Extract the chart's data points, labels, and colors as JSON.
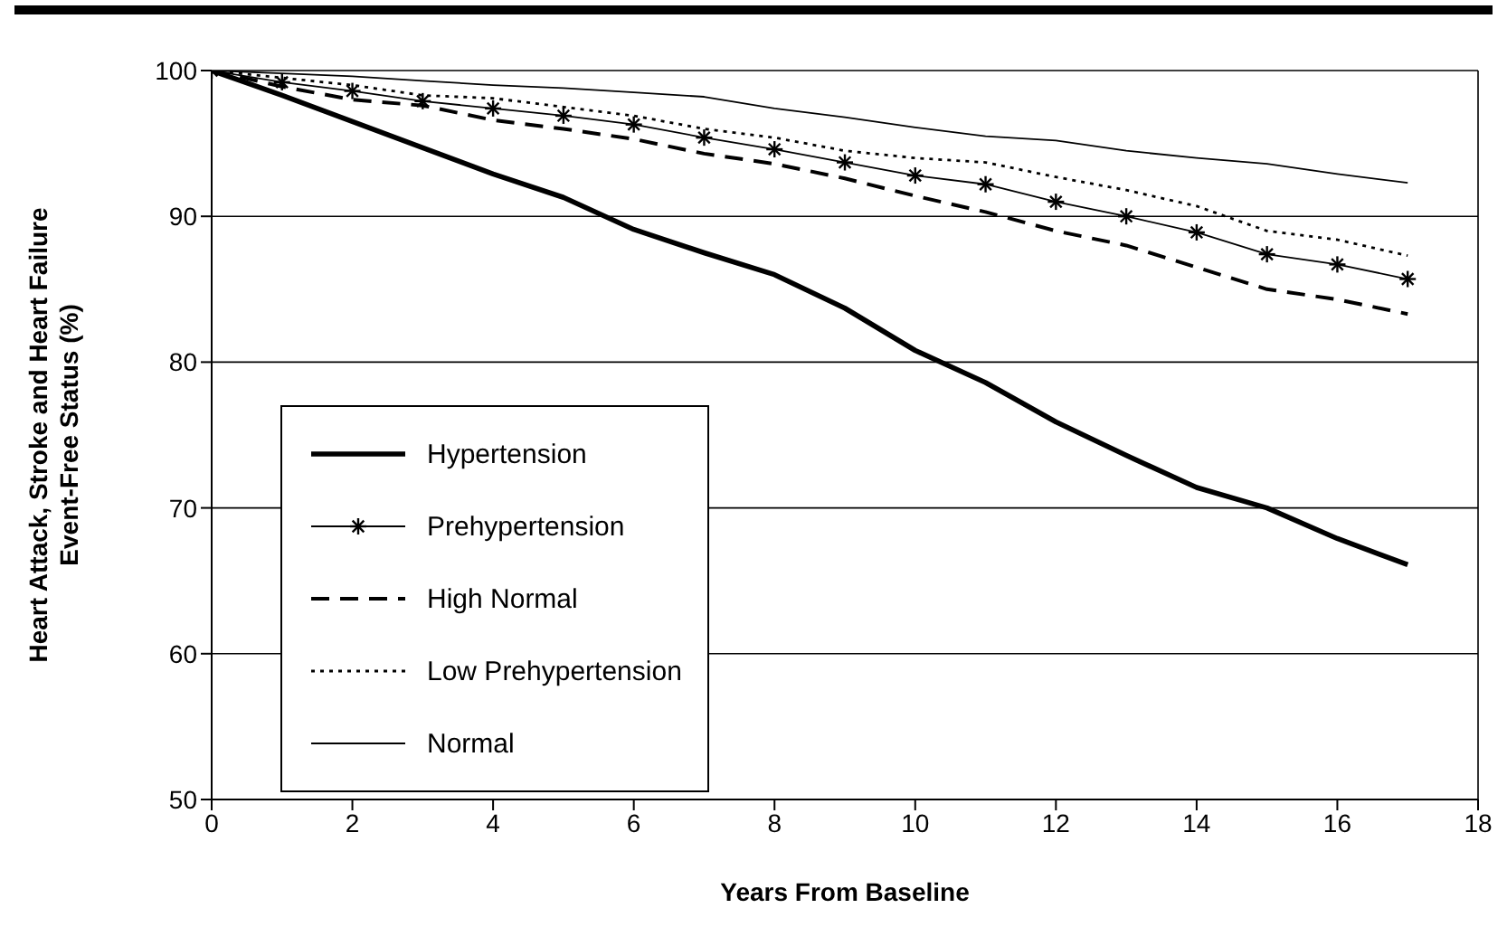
{
  "chart_data": {
    "type": "line",
    "xlabel": "Years From Baseline",
    "ylabel": "Heart Attack, Stroke and Heart Failure\nEvent-Free Status (%)",
    "x": [
      0,
      1,
      2,
      3,
      4,
      5,
      6,
      7,
      8,
      9,
      10,
      11,
      12,
      13,
      14,
      15,
      16,
      17
    ],
    "series": [
      {
        "name": "Hypertension",
        "color": "#000000",
        "line_style": "solid",
        "marker": "none",
        "values": [
          100,
          98.3,
          96.5,
          94.7,
          92.9,
          91.3,
          89.1,
          87.5,
          86.0,
          83.7,
          80.8,
          78.6,
          75.9,
          73.6,
          71.4,
          70.0,
          67.9,
          66.1
        ]
      },
      {
        "name": "Prehypertension",
        "color": "#000000",
        "line_style": "solid",
        "marker": "cross",
        "values": [
          100,
          99.2,
          98.6,
          97.9,
          97.4,
          96.9,
          96.3,
          95.4,
          94.6,
          93.7,
          92.8,
          92.2,
          91.0,
          90.0,
          88.9,
          87.4,
          86.7,
          85.7
        ]
      },
      {
        "name": "High Normal",
        "color": "#000000",
        "line_style": "dashed",
        "marker": "none",
        "values": [
          100,
          98.9,
          98.0,
          97.6,
          96.6,
          96.0,
          95.3,
          94.3,
          93.6,
          92.6,
          91.4,
          90.3,
          89.0,
          88.0,
          86.5,
          85.0,
          84.3,
          83.3
        ]
      },
      {
        "name": "Low Prehypertension",
        "color": "#000000",
        "line_style": "dotted",
        "marker": "none",
        "values": [
          100,
          99.5,
          99.0,
          98.3,
          98.1,
          97.5,
          96.9,
          96.0,
          95.4,
          94.5,
          94.0,
          93.7,
          92.7,
          91.8,
          90.7,
          89.0,
          88.4,
          87.3
        ]
      },
      {
        "name": "Normal",
        "color": "#000000",
        "line_style": "solid",
        "marker": "none",
        "values": [
          100,
          99.8,
          99.6,
          99.3,
          99.0,
          98.8,
          98.5,
          98.2,
          97.4,
          96.8,
          96.1,
          95.5,
          95.2,
          94.5,
          94.0,
          93.6,
          92.9,
          92.3
        ]
      }
    ],
    "xlim": [
      0,
      18
    ],
    "xticks": [
      0,
      2,
      4,
      6,
      8,
      10,
      12,
      14,
      16,
      18
    ],
    "ylim": [
      50,
      100
    ],
    "yticks": [
      50,
      60,
      70,
      80,
      90,
      100
    ],
    "grid": "y",
    "legend": "center left"
  }
}
